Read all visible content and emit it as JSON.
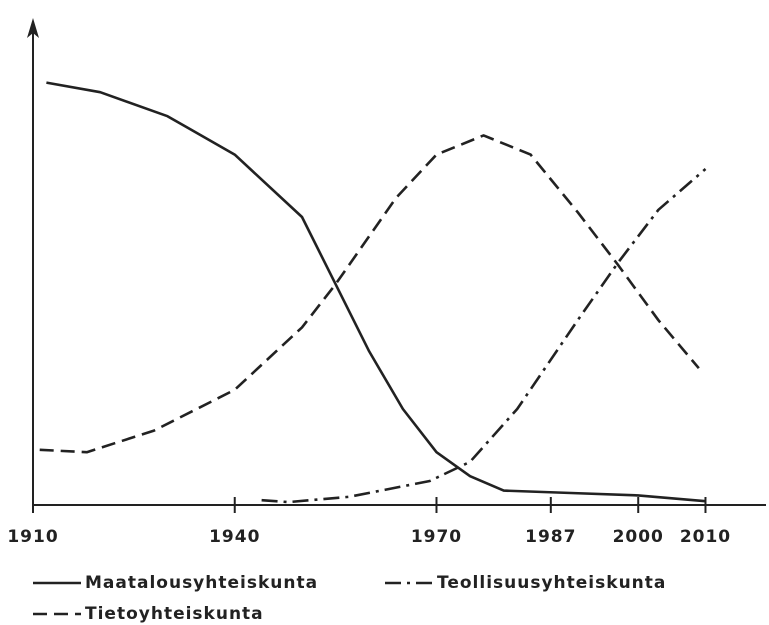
{
  "chart_data": {
    "type": "line",
    "xlim": [
      1910,
      2019
    ],
    "ylim": [
      0,
      100
    ],
    "xticks": [
      1910,
      1940,
      1970,
      1987,
      2000,
      2010
    ],
    "series": [
      {
        "name": "Maatalousyhteiskunta",
        "color": "#222222",
        "dash": "solid",
        "x": [
          1912,
          1920,
          1930,
          1940,
          1950,
          1955,
          1960,
          1965,
          1970,
          1975,
          1980,
          1990,
          2000,
          2010
        ],
        "values": [
          88,
          86,
          81,
          73,
          60,
          46,
          32,
          20,
          11,
          6,
          3,
          2.5,
          2,
          0.8
        ]
      },
      {
        "name": "Teollisuusyhteiskunta",
        "color": "#222222",
        "dash": "dashdot",
        "x": [
          1944,
          1948,
          1957,
          1969,
          1975,
          1982,
          1991,
          1997,
          2003,
          2010
        ],
        "values": [
          1,
          0.6,
          1.7,
          5,
          9,
          20,
          38.5,
          50.5,
          61.5,
          70
        ]
      },
      {
        "name": "Tietoyhteiskunta",
        "color": "#222222",
        "dash": "dashed",
        "x": [
          1911,
          1918,
          1928,
          1940,
          1950,
          1955,
          1964,
          1970,
          1977,
          1984,
          1991,
          1997,
          2003,
          2009
        ],
        "values": [
          11.5,
          11,
          15.5,
          24,
          37,
          46,
          64,
          73,
          77,
          73,
          61,
          50,
          38.5,
          28.5
        ]
      }
    ]
  }
}
